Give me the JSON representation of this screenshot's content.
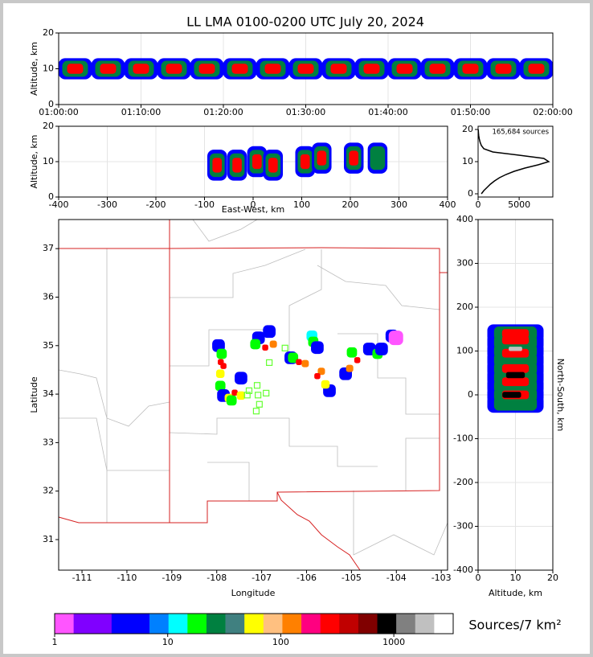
{
  "chart_data": [
    {
      "type": "scatter",
      "title": "LL LMA 0100-0200 UTC July 20, 2024",
      "ylabel": "Altitude, km",
      "xlim": [
        0,
        60
      ],
      "xticks": [
        {
          "value": 0,
          "label": "01:00:00"
        },
        {
          "value": 10,
          "label": "01:10:00"
        },
        {
          "value": 20,
          "label": "01:20:00"
        },
        {
          "value": 30,
          "label": "01:30:00"
        },
        {
          "value": 40,
          "label": "01:40:00"
        },
        {
          "value": 50,
          "label": "01:50:00"
        },
        {
          "value": 60,
          "label": "02:00:00"
        }
      ],
      "ylim": [
        0,
        20
      ],
      "yticks": [
        0,
        10,
        20
      ],
      "grid": true,
      "points": [
        [
          2,
          10,
          3
        ],
        [
          2,
          10,
          8
        ],
        [
          2,
          10,
          14
        ],
        [
          6,
          10,
          3
        ],
        [
          6,
          10,
          8
        ],
        [
          6,
          10,
          14
        ],
        [
          10,
          10,
          3
        ],
        [
          10,
          10,
          8
        ],
        [
          10,
          10,
          14
        ],
        [
          14,
          10,
          3
        ],
        [
          14,
          10,
          8
        ],
        [
          14,
          10,
          14
        ],
        [
          18,
          10,
          3
        ],
        [
          18,
          10,
          8
        ],
        [
          18,
          10,
          14
        ],
        [
          22,
          10,
          3
        ],
        [
          22,
          10,
          8
        ],
        [
          22,
          10,
          14
        ],
        [
          26,
          10,
          3
        ],
        [
          26,
          10,
          8
        ],
        [
          26,
          10,
          14
        ],
        [
          30,
          10,
          3
        ],
        [
          30,
          10,
          8
        ],
        [
          30,
          10,
          14
        ],
        [
          34,
          10,
          3
        ],
        [
          34,
          10,
          8
        ],
        [
          34,
          10,
          14
        ],
        [
          38,
          10,
          3
        ],
        [
          38,
          10,
          8
        ],
        [
          38,
          10,
          14
        ],
        [
          42,
          10,
          3
        ],
        [
          42,
          10,
          8
        ],
        [
          42,
          10,
          14
        ],
        [
          46,
          10,
          3
        ],
        [
          46,
          10,
          8
        ],
        [
          46,
          10,
          14
        ],
        [
          50,
          10,
          3
        ],
        [
          50,
          10,
          8
        ],
        [
          50,
          10,
          14
        ],
        [
          54,
          10,
          3
        ],
        [
          54,
          10,
          8
        ],
        [
          54,
          10,
          14
        ],
        [
          58,
          10,
          3
        ],
        [
          58,
          10,
          8
        ],
        [
          58,
          10,
          14
        ]
      ]
    },
    {
      "type": "scatter",
      "xlabel": "East-West, km",
      "ylabel": "Altitude, km",
      "xlim": [
        -400,
        400
      ],
      "xticks": [
        -400,
        -300,
        -200,
        -100,
        0,
        100,
        200,
        300,
        400
      ],
      "ylim": [
        0,
        20
      ],
      "yticks": [
        0,
        10,
        20
      ],
      "grid": true,
      "points": [
        [
          -74,
          9,
          3
        ],
        [
          -74,
          9,
          8
        ],
        [
          -74,
          9,
          14
        ],
        [
          -33,
          9,
          3
        ],
        [
          -33,
          9,
          8
        ],
        [
          -33,
          9,
          14
        ],
        [
          8,
          10,
          3
        ],
        [
          8,
          10,
          8
        ],
        [
          8,
          10,
          14
        ],
        [
          41,
          9,
          3
        ],
        [
          41,
          9,
          8
        ],
        [
          41,
          9,
          14
        ],
        [
          107,
          10,
          3
        ],
        [
          107,
          10,
          8
        ],
        [
          107,
          10,
          14
        ],
        [
          141,
          11,
          3
        ],
        [
          141,
          11,
          8
        ],
        [
          141,
          11,
          14
        ],
        [
          207,
          11,
          3
        ],
        [
          207,
          11,
          8
        ],
        [
          207,
          11,
          14
        ],
        [
          256,
          11,
          3
        ],
        [
          256,
          11,
          8
        ]
      ]
    },
    {
      "type": "line",
      "annotation": "165,684 sources",
      "xlim": [
        0,
        9100
      ],
      "xticks": [
        0,
        5000
      ],
      "ylim": [
        -1,
        21
      ],
      "yticks": [
        0,
        10,
        20
      ],
      "y": [
        0,
        1,
        2,
        3,
        4,
        5,
        6,
        7,
        8,
        9,
        10,
        11,
        12,
        13,
        14,
        15,
        16,
        17,
        18,
        19,
        20
      ],
      "values": [
        400,
        700,
        1100,
        1500,
        2000,
        2600,
        3400,
        4400,
        5700,
        7300,
        8600,
        8000,
        5000,
        1800,
        700,
        400,
        250,
        150,
        80,
        40,
        20
      ],
      "color": "#000000"
    },
    {
      "type": "scatter",
      "xlabel": "Longitude",
      "ylabel": "Latitude",
      "xlim": [
        -111.52,
        -102.86
      ],
      "xticks": [
        -111,
        -110,
        -109,
        -108,
        -107,
        -106,
        -105,
        -104,
        -103
      ],
      "ylim": [
        30.37,
        37.6
      ],
      "yticks": [
        31,
        32,
        33,
        34,
        35,
        36,
        37
      ],
      "points": [
        [
          -107.96,
          35.0,
          3
        ],
        [
          -107.89,
          34.83,
          7
        ],
        [
          -107.91,
          34.66,
          14
        ],
        [
          -107.85,
          34.58,
          14
        ],
        [
          -107.92,
          34.42,
          10
        ],
        [
          -107.92,
          34.17,
          7
        ],
        [
          -107.85,
          33.97,
          3
        ],
        [
          -107.73,
          33.92,
          10
        ],
        [
          -107.46,
          34.33,
          3
        ],
        [
          -107.67,
          33.87,
          7
        ],
        [
          -107.6,
          34.03,
          14
        ],
        [
          -107.46,
          33.97,
          10
        ],
        [
          -107.07,
          35.16,
          3
        ],
        [
          -106.83,
          35.29,
          3
        ],
        [
          -107.14,
          35.03,
          7
        ],
        [
          -106.92,
          34.96,
          14
        ],
        [
          -106.74,
          35.03,
          12
        ],
        [
          -106.35,
          34.75,
          3
        ],
        [
          -106.3,
          34.75,
          7
        ],
        [
          -106.17,
          34.66,
          14
        ],
        [
          -106.03,
          34.63,
          12
        ],
        [
          -105.88,
          35.2,
          6
        ],
        [
          -105.85,
          35.08,
          7
        ],
        [
          -105.76,
          34.96,
          3
        ],
        [
          -105.49,
          34.07,
          3
        ],
        [
          -105.58,
          34.2,
          10
        ],
        [
          -105.67,
          34.47,
          12
        ],
        [
          -105.76,
          34.37,
          14
        ],
        [
          -105.13,
          34.42,
          3
        ],
        [
          -104.99,
          34.86,
          7
        ],
        [
          -105.04,
          34.53,
          12
        ],
        [
          -104.87,
          34.7,
          14
        ],
        [
          -104.6,
          34.93,
          3
        ],
        [
          -104.42,
          34.83,
          7
        ],
        [
          -104.33,
          34.93,
          3
        ],
        [
          -104.1,
          35.2,
          3
        ],
        [
          -104.01,
          35.16,
          0
        ]
      ],
      "stations": [
        [
          -106.48,
          34.95
        ],
        [
          -106.83,
          34.65
        ],
        [
          -107.1,
          34.18
        ],
        [
          -107.28,
          34.07
        ],
        [
          -107.32,
          33.98
        ],
        [
          -107.08,
          33.98
        ],
        [
          -106.9,
          34.02
        ],
        [
          -107.05,
          33.79
        ],
        [
          -107.12,
          33.65
        ]
      ],
      "station_color": "#66ff33"
    },
    {
      "type": "scatter",
      "xlabel": "Altitude, km",
      "ylabel": "North-South, km",
      "xlim": [
        0,
        20
      ],
      "xticks": [
        0,
        10,
        20
      ],
      "ylim": [
        -400,
        400
      ],
      "yticks": [
        -400,
        -300,
        -200,
        -100,
        0,
        100,
        200,
        300,
        400
      ],
      "grid": true,
      "points": [
        [
          10,
          -20,
          3
        ],
        [
          10,
          0,
          3
        ],
        [
          10,
          20,
          3
        ],
        [
          10,
          40,
          3
        ],
        [
          10,
          60,
          3
        ],
        [
          10,
          80,
          3
        ],
        [
          10,
          100,
          3
        ],
        [
          10,
          120,
          3
        ],
        [
          10,
          140,
          3
        ],
        [
          10,
          -20,
          8
        ],
        [
          10,
          0,
          8
        ],
        [
          10,
          20,
          8
        ],
        [
          10,
          40,
          8
        ],
        [
          10,
          60,
          8
        ],
        [
          10,
          80,
          8
        ],
        [
          10,
          100,
          8
        ],
        [
          10,
          120,
          8
        ],
        [
          10,
          140,
          8
        ],
        [
          10,
          0,
          14
        ],
        [
          10,
          30,
          14
        ],
        [
          10,
          60,
          14
        ],
        [
          10,
          95,
          14
        ],
        [
          10,
          125,
          14
        ],
        [
          10,
          140,
          14
        ],
        [
          9,
          0,
          17
        ],
        [
          10,
          45,
          17
        ],
        [
          10,
          105,
          19
        ]
      ]
    },
    {
      "type": "colorbar",
      "label": "Sources/7 km²",
      "log": true,
      "xlim": [
        1,
        3350
      ],
      "xticks": [
        1,
        10,
        100,
        1000
      ],
      "colors": [
        "#ff55ff",
        "#8000ff",
        "#8000ff",
        "#0000ff",
        "#0000ff",
        "#0080ff",
        "#00ffff",
        "#00ff00",
        "#008040",
        "#408080",
        "#ffff00",
        "#ffc080",
        "#ff8000",
        "#ff0080",
        "#ff0000",
        "#c00000",
        "#800000",
        "#000000",
        "#808080",
        "#c0c0c0",
        "#ffffff"
      ]
    }
  ]
}
